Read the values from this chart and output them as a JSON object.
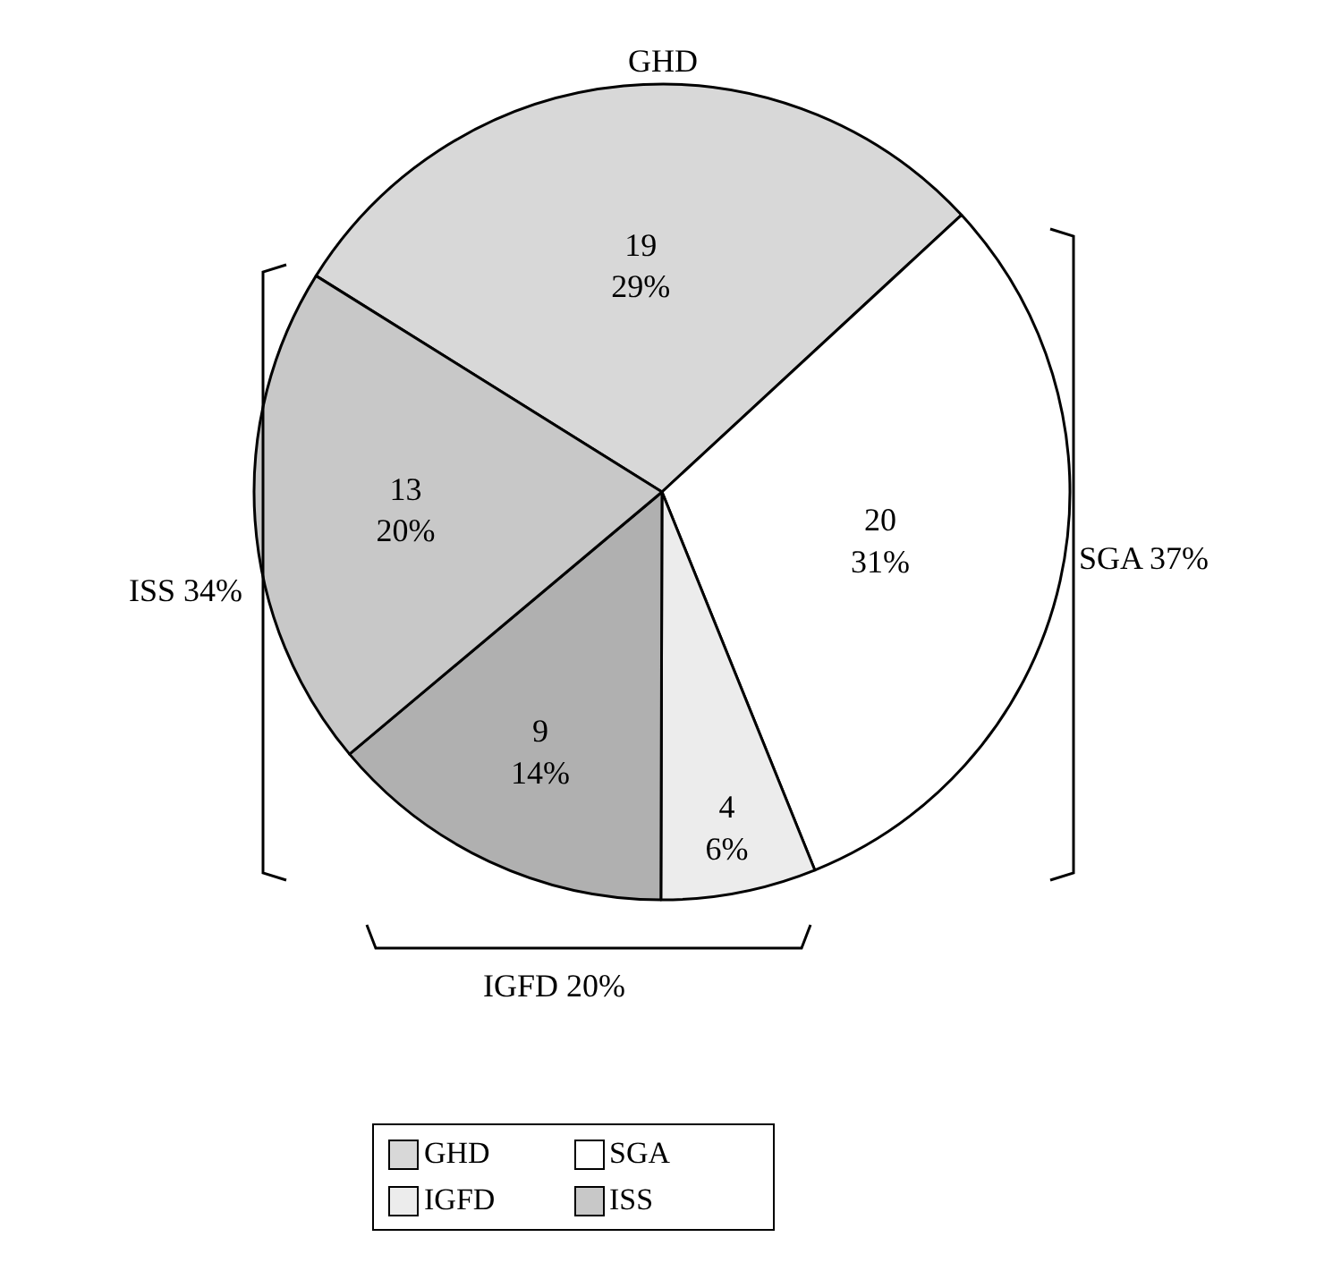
{
  "chart_data": {
    "type": "pie",
    "categories": [
      "GHD",
      "SGA",
      "IGFD",
      null,
      "ISS"
    ],
    "values": [
      19,
      20,
      4,
      9,
      13
    ],
    "value_labels": [
      "19\n29%",
      "20\n31%",
      "4\n6%",
      "9\n14%",
      "13\n20%"
    ],
    "colors": [
      "#d8d8d8",
      "#ffffff",
      "#ececec",
      "#b0b0b0",
      "#c8c8c8"
    ],
    "annotations": [
      "GHD",
      "SGA 37%",
      "ISS 34%",
      "IGFD 20%"
    ],
    "legend": "bottom"
  }
}
